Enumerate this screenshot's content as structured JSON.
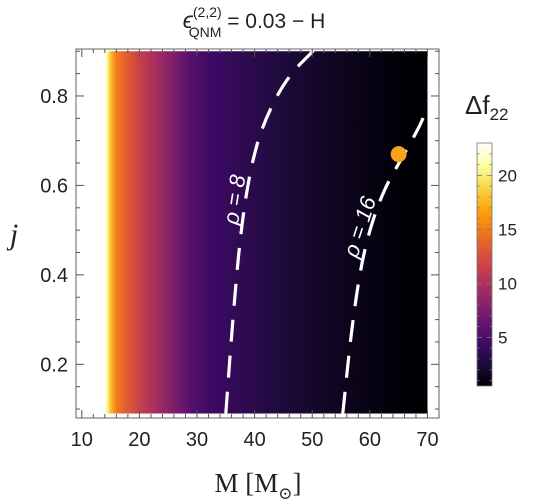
{
  "chart_data": {
    "type": "heatmap",
    "title_main": "ϵ",
    "title_sup": "(2,2)",
    "title_sub": "QNM",
    "title_rest": " = 0.03 − H",
    "xlabel": "M [M",
    "xlabel_sub": "⊙",
    "xlabel_close": "]",
    "ylabel": "j",
    "xlim": [
      9,
      72
    ],
    "ylim": [
      0.08,
      0.905
    ],
    "data_x_range": [
      14,
      70
    ],
    "data_y_range": [
      0.09,
      0.9
    ],
    "x_ticks": [
      {
        "value": 10,
        "label": "10"
      },
      {
        "value": 20,
        "label": "20"
      },
      {
        "value": 30,
        "label": "30"
      },
      {
        "value": 40,
        "label": "40"
      },
      {
        "value": 50,
        "label": "50"
      },
      {
        "value": 60,
        "label": "60"
      },
      {
        "value": 70,
        "label": "70"
      }
    ],
    "y_ticks": [
      {
        "value": 0.2,
        "label": "0.2"
      },
      {
        "value": 0.4,
        "label": "0.4"
      },
      {
        "value": 0.6,
        "label": "0.6"
      },
      {
        "value": 0.8,
        "label": "0.8"
      }
    ],
    "field_profile": [
      {
        "M": 14.0,
        "df": 22.5
      },
      {
        "M": 14.5,
        "df": 20.5
      },
      {
        "M": 15.0,
        "df": 18.0
      },
      {
        "M": 16.0,
        "df": 15.0
      },
      {
        "M": 17.5,
        "df": 13.5
      },
      {
        "M": 20.0,
        "df": 11.5
      },
      {
        "M": 23.0,
        "df": 9.5
      },
      {
        "M": 26.0,
        "df": 7.5
      },
      {
        "M": 29.0,
        "df": 5.5
      },
      {
        "M": 32.0,
        "df": 4.5
      },
      {
        "M": 35.0,
        "df": 4.0
      },
      {
        "M": 40.0,
        "df": 3.3
      },
      {
        "M": 45.0,
        "df": 2.6
      },
      {
        "M": 50.0,
        "df": 2.0
      },
      {
        "M": 55.0,
        "df": 1.5
      },
      {
        "M": 60.0,
        "df": 1.1
      },
      {
        "M": 65.0,
        "df": 0.6
      },
      {
        "M": 70.0,
        "df": 0.3
      }
    ],
    "contours": [
      {
        "label_prefix": "ρ = ",
        "label_value": "8",
        "points": [
          [
            35.0,
            0.09
          ],
          [
            36.2,
            0.3
          ],
          [
            37.6,
            0.5
          ],
          [
            39.3,
            0.64
          ],
          [
            41.5,
            0.74
          ],
          [
            45.5,
            0.84
          ],
          [
            50.5,
            0.905
          ]
        ]
      },
      {
        "label_prefix": "ρ = ",
        "label_value": "16",
        "points": [
          [
            55.3,
            0.09
          ],
          [
            57.0,
            0.3
          ],
          [
            59.0,
            0.46
          ],
          [
            62.0,
            0.58
          ],
          [
            65.5,
            0.66
          ],
          [
            69.0,
            0.74
          ],
          [
            70.0,
            0.78
          ]
        ]
      }
    ],
    "marker": {
      "M": 65,
      "j": 0.67,
      "color": "#f7a41c"
    },
    "colorbar": {
      "title": "Δf",
      "title_sub": "22",
      "range": [
        0.5,
        23
      ],
      "ticks": [
        {
          "value": 5,
          "label": "5"
        },
        {
          "value": 10,
          "label": "10"
        },
        {
          "value": 15,
          "label": "15"
        },
        {
          "value": 20,
          "label": "20"
        }
      ],
      "colormap": [
        "#000004",
        "#1c0a3a",
        "#420a68",
        "#6a176e",
        "#932667",
        "#bc3754",
        "#dd513a",
        "#f37819",
        "#fca50a",
        "#f6d746",
        "#fcffa4",
        "#ffffff"
      ]
    }
  }
}
